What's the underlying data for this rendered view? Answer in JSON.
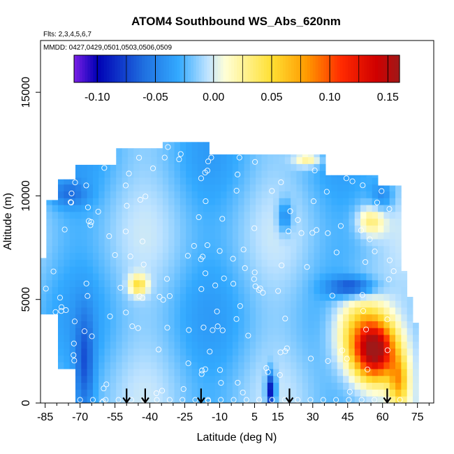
{
  "chart_data": {
    "type": "heatmap",
    "title": "ATOM4 Southbound WS_Abs_620nm",
    "flights_note": "Flts: 2,3,4,5,6,7",
    "dates_note": "MMDD: 0427,0429,0501,0503,0506,0509",
    "xlabel": "Latitude (deg N)",
    "ylabel": "Altitude (m)",
    "xlim": [
      -87,
      82
    ],
    "ylim": [
      0,
      17500
    ],
    "x_ticks": [
      -85,
      -70,
      -55,
      -40,
      -25,
      -10,
      5,
      15,
      30,
      45,
      60,
      75
    ],
    "y_ticks": [
      0,
      5000,
      10000,
      15000
    ],
    "colorbar": {
      "min": -0.12,
      "max": 0.16,
      "ticks": [
        -0.1,
        -0.05,
        0.0,
        0.05,
        0.1,
        0.15
      ],
      "tick_labels": [
        "-0.10",
        "-0.05",
        "0.00",
        "0.05",
        "0.10",
        "0.15"
      ],
      "colors": [
        "#7b1fe6",
        "#0000b4",
        "#1f6fe0",
        "#33aaff",
        "#bfe3ff",
        "#ffffd6",
        "#ffe033",
        "#ff9a00",
        "#ff2a00",
        "#d00000",
        "#a01818"
      ]
    },
    "grid": false,
    "arrows_at_lat": [
      -50,
      -42,
      -18,
      20,
      62
    ],
    "field": {
      "background": 0.0,
      "features": [
        {
          "lat": 57,
          "alt": 2500,
          "rlat": 9,
          "ralt": 1400,
          "value": 0.15
        },
        {
          "lat": 50,
          "alt": 3500,
          "rlat": 12,
          "ralt": 2000,
          "value": 0.08
        },
        {
          "lat": 12,
          "alt": 600,
          "rlat": 2,
          "ralt": 900,
          "value": -0.09
        },
        {
          "lat": -68,
          "alt": 1800,
          "rlat": 4,
          "ralt": 2500,
          "value": -0.04
        },
        {
          "lat": 18,
          "alt": 9000,
          "rlat": 3,
          "ralt": 800,
          "value": -0.04
        },
        {
          "lat": 47,
          "alt": 5600,
          "rlat": 10,
          "ralt": 500,
          "value": -0.06
        },
        {
          "lat": -45,
          "alt": 5700,
          "rlat": 4,
          "ralt": 500,
          "value": 0.06
        },
        {
          "lat": 55,
          "alt": 8800,
          "rlat": 6,
          "ralt": 700,
          "value": 0.05
        },
        {
          "lat": 28,
          "alt": 11800,
          "rlat": 6,
          "ralt": 400,
          "value": 0.05
        },
        {
          "lat": -75,
          "alt": 10100,
          "rlat": 8,
          "ralt": 600,
          "value": -0.03
        },
        {
          "lat": 60,
          "alt": 10000,
          "rlat": 5,
          "ralt": 800,
          "value": -0.03
        },
        {
          "lat": 67,
          "alt": 1000,
          "rlat": 4,
          "ralt": 1200,
          "value": 0.07
        }
      ]
    }
  }
}
